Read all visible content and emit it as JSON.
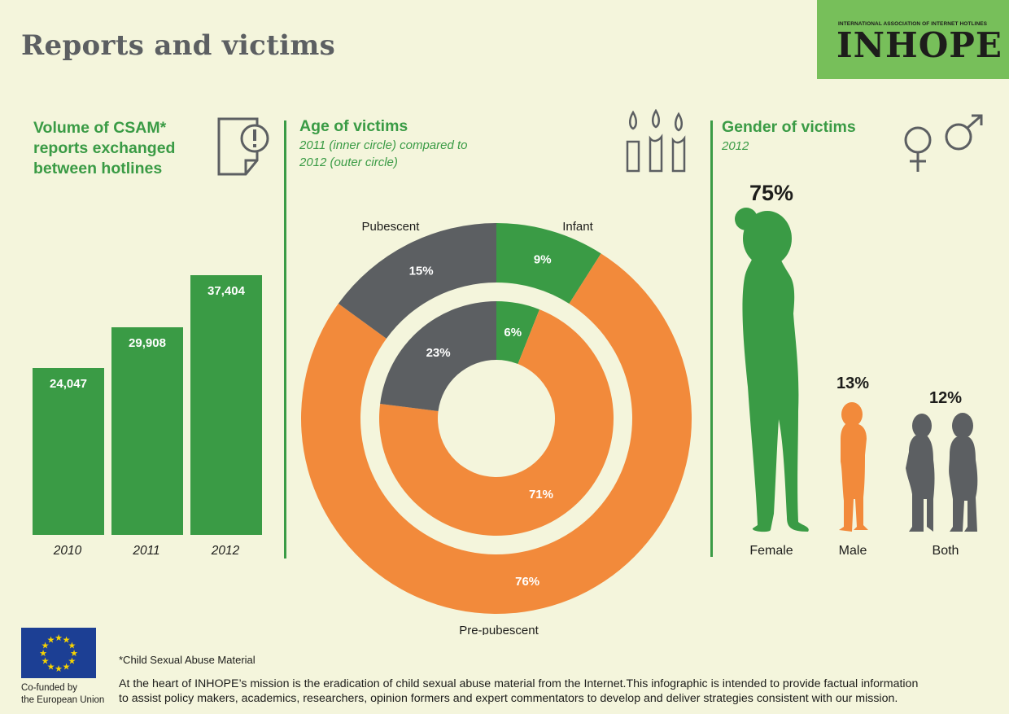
{
  "header": {
    "title": "Reports and victims",
    "logo_sub": "INTERNATIONAL ASSOCIATION OF INTERNET HOTLINES",
    "logo_main": "INHOPE"
  },
  "volume": {
    "title_lines": [
      "Volume of CSAM*",
      "reports exchanged",
      "between hotlines"
    ]
  },
  "age": {
    "title": "Age of victims",
    "subtitle_lines": [
      "2011 (inner circle) compared to",
      "2012 (outer circle)"
    ]
  },
  "gender": {
    "title": "Gender of victims",
    "subtitle": "2012"
  },
  "chart_data": [
    {
      "type": "bar",
      "categories": [
        "2010",
        "2011",
        "2012"
      ],
      "values": [
        24047,
        29908,
        37404
      ],
      "value_labels": [
        "24,047",
        "29,908",
        "37,404"
      ],
      "title": "Volume of CSAM* reports exchanged between hotlines",
      "color": "#3a9b45"
    },
    {
      "type": "pie",
      "title": "Age of victims",
      "rings": [
        {
          "name": "2011 (inner circle)",
          "slices": [
            {
              "label": "Infant",
              "value": 6,
              "text": "6%",
              "color": "#3a9b45"
            },
            {
              "label": "Pre-pubescent",
              "value": 71,
              "text": "71%",
              "color": "#f28a3b"
            },
            {
              "label": "Pubescent",
              "value": 23,
              "text": "23%",
              "color": "#5c5f62"
            }
          ]
        },
        {
          "name": "2012 (outer circle)",
          "slices": [
            {
              "label": "Infant",
              "value": 9,
              "text": "9%",
              "color": "#3a9b45"
            },
            {
              "label": "Pre-pubescent",
              "value": 76,
              "text": "76%",
              "color": "#f28a3b"
            },
            {
              "label": "Pubescent",
              "value": 15,
              "text": "15%",
              "color": "#5c5f62"
            }
          ]
        }
      ],
      "category_labels": [
        "Infant",
        "Pre-pubescent",
        "Pubescent"
      ]
    },
    {
      "type": "bar",
      "title": "Gender of victims",
      "categories": [
        "Female",
        "Male",
        "Both"
      ],
      "values": [
        75,
        13,
        12
      ],
      "value_labels": [
        "75%",
        "13%",
        "12%"
      ],
      "colors": [
        "#3a9b45",
        "#f28a3b",
        "#5c5f62"
      ]
    }
  ],
  "footer": {
    "footnote": "*Child Sexual Abuse Material",
    "mission_lines": [
      "At the heart of INHOPE’s mission is the eradication of child sexual abuse material from the Internet.This infographic is intended to provide factual information",
      "to assist policy makers, academics, researchers, opinion formers and expert commentators to develop and deliver strategies consistent with our mission."
    ],
    "eu_caption_lines": [
      "Co-funded by",
      "the European Union"
    ]
  },
  "icons": [
    "document-alert-icon",
    "candles-icon",
    "female-symbol-icon",
    "male-symbol-icon",
    "eu-flag-icon"
  ]
}
